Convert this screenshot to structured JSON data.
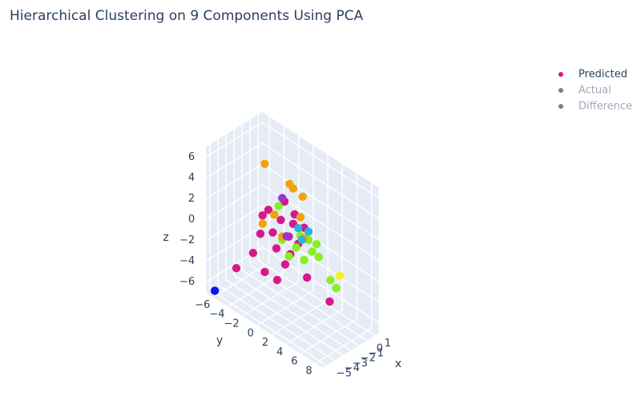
{
  "chart_data": {
    "type": "scatter3d",
    "title": "Hierarchical Clustering on 9 Components Using PCA",
    "xlabel": "x",
    "ylabel": "y",
    "zlabel": "z",
    "xlim": [
      -5.5,
      1.5
    ],
    "ylim": [
      -7,
      9
    ],
    "zlim": [
      -7,
      7
    ],
    "xticks": [
      {
        "value": -5,
        "label": "−5"
      },
      {
        "value": -4,
        "label": "−4"
      },
      {
        "value": -3,
        "label": "−3"
      },
      {
        "value": -2,
        "label": "−2"
      },
      {
        "value": -1,
        "label": "−1"
      },
      0,
      1
    ],
    "yticks": [
      {
        "value": -6,
        "label": "−6"
      },
      {
        "value": -4,
        "label": "−4"
      },
      {
        "value": -2,
        "label": "−2"
      },
      0,
      2,
      4,
      6,
      8
    ],
    "zticks": [
      {
        "value": -6,
        "label": "−6"
      },
      {
        "value": -4,
        "label": "−4"
      },
      {
        "value": -2,
        "label": "−2"
      },
      0,
      2,
      4,
      6
    ],
    "grid": true,
    "legend_position": "top-right",
    "series": [
      {
        "name": "Predicted",
        "color": "#d6198a",
        "visible": true,
        "x": [
          -2,
          -2,
          -2,
          -2,
          -2,
          -2,
          -2,
          -2,
          -2,
          -2,
          -2,
          -2,
          -2,
          -2,
          -2,
          -2,
          -2,
          -2,
          -2,
          -2,
          -2,
          -2,
          -2,
          -2,
          -2,
          -2,
          -2,
          -2,
          -2,
          -2,
          -2,
          -2,
          -2,
          -2,
          -2,
          -2,
          -2,
          -2,
          -2,
          -2,
          -2,
          -2,
          -2,
          -2,
          -2,
          -2,
          -2,
          -5.5
        ],
        "y": [
          -6.7,
          -4.4,
          -2.8,
          -1.1,
          0.0,
          3.0,
          6.1,
          -3.4,
          -3.1,
          -1.7,
          -0.6,
          0.5,
          1.3,
          1.8,
          -0.1,
          2.6,
          -1.2,
          0.7,
          1.1,
          -2.3,
          -0.9,
          -0.4,
          1.5,
          3.2,
          3.7,
          4.6,
          2.6,
          0.5,
          6.2,
          7.0,
          2.1,
          4.3,
          -2.8,
          0.6,
          1.1,
          2.4,
          -3.1,
          -0.4,
          2.1,
          2.6,
          -1.5,
          1.8,
          3.2,
          2.3,
          -0.4,
          0.2,
          7.5,
          -5.8
        ],
        "z": [
          -6.2,
          -3.7,
          -4.8,
          -4.8,
          -2.8,
          -2.7,
          -3.6,
          -1.4,
          0.5,
          -0.5,
          1.2,
          0.1,
          2.6,
          0.0,
          3.2,
          1.9,
          -1.8,
          -1.5,
          1.6,
          1.4,
          2.4,
          -0.6,
          -0.5,
          1.0,
          0.1,
          0.0,
          -1.2,
          -1.8,
          -1.5,
          -1.9,
          0.9,
          1.1,
          5.6,
          5.2,
          5.0,
          4.8,
          -0.3,
          -0.3,
          2.7,
          0.9,
          1.3,
          1.5,
          1.8,
          0.6,
          3.4,
          0.0,
          -0.5,
          -6.3
        ],
        "colors": [
          "#d6198a",
          "#d6198a",
          "#d6198a",
          "#d6198a",
          "#d6198a",
          "#d6198a",
          "#d6198a",
          "#d6198a",
          "#d6198a",
          "#d6198a",
          "#d6198a",
          "#d6198a",
          "#d6198a",
          "#d6198a",
          "#d6198a",
          "#d6198a",
          "#d6198a",
          "#d6198a",
          "#d6198a",
          "#d6198a",
          "#86f01f",
          "#86f01f",
          "#86f01f",
          "#86f01f",
          "#86f01f",
          "#86f01f",
          "#86f01f",
          "#86f01f",
          "#86f01f",
          "#86f01f",
          "#86f01f",
          "#86f01f",
          "#f0a30a",
          "#f0a30a",
          "#f0a30a",
          "#f0a30a",
          "#f0a30a",
          "#f0a30a",
          "#f0a30a",
          "#f0a30a",
          "#f0a30a",
          "#27b6d8",
          "#27b6d8",
          "#27b6d8",
          "#9b35d0",
          "#9b35d0",
          "#f8f024",
          "#0c16e8"
        ]
      },
      {
        "name": "Actual",
        "color": "#808080",
        "visible": "legendonly",
        "x": [],
        "y": [],
        "z": [],
        "colors": []
      },
      {
        "name": "Difference",
        "color": "#808080",
        "visible": "legendonly",
        "x": [],
        "y": [],
        "z": [],
        "colors": []
      }
    ]
  }
}
